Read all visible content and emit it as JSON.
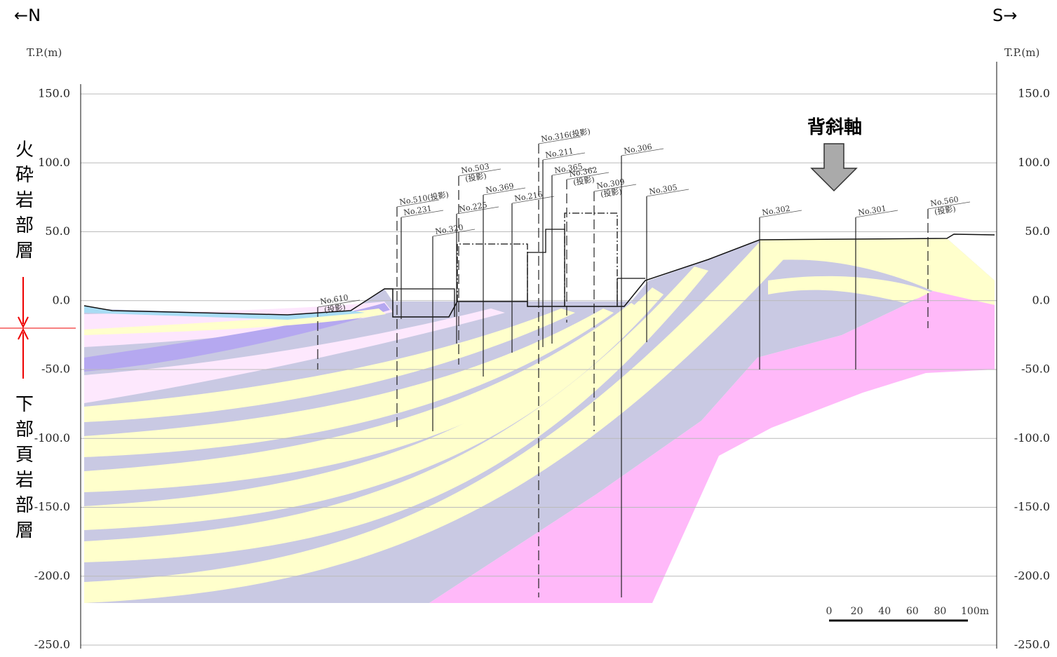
{
  "direction": {
    "left": "←N",
    "right": "S→"
  },
  "axis": {
    "unit_left": "T.P.(m)",
    "unit_right": "T.P.(m)",
    "ylim": [
      -250,
      150
    ],
    "ticks": [
      {
        "value": 150,
        "label": "150.0"
      },
      {
        "value": 100,
        "label": "100.0"
      },
      {
        "value": 50,
        "label": "50.0"
      },
      {
        "value": 0,
        "label": "0.0"
      },
      {
        "value": -50,
        "label": "-50.0"
      },
      {
        "value": -100,
        "label": "-100.0"
      },
      {
        "value": -150,
        "label": "-150.0"
      },
      {
        "value": -200,
        "label": "-200.0"
      },
      {
        "value": -250,
        "label": "-250.0"
      }
    ]
  },
  "annotation": "背斜軸",
  "formations": {
    "upper": "火砕岩部層",
    "lower": "下部頁岩部層"
  },
  "boreholes": [
    {
      "label": [
        "No.610",
        "(投影)"
      ]
    },
    {
      "label": [
        "No.510(投影)"
      ]
    },
    {
      "label": [
        "No.231"
      ]
    },
    {
      "label": [
        "No.320"
      ]
    },
    {
      "label": [
        "No.503",
        "(投影)"
      ]
    },
    {
      "label": [
        "No.225"
      ]
    },
    {
      "label": [
        "No.369"
      ]
    },
    {
      "label": [
        "No.216"
      ]
    },
    {
      "label": [
        "No.316(投影)"
      ]
    },
    {
      "label": [
        "No.211"
      ]
    },
    {
      "label": [
        "No.365"
      ]
    },
    {
      "label": [
        "No.362",
        "(投影)"
      ]
    },
    {
      "label": [
        "No.309",
        "(投影)"
      ]
    },
    {
      "label": [
        "No.306"
      ]
    },
    {
      "label": [
        "No.305"
      ]
    },
    {
      "label": [
        "No.302"
      ]
    },
    {
      "label": [
        "No.301"
      ]
    },
    {
      "label": [
        "No.560",
        "(投影)"
      ]
    }
  ],
  "scale_bar": [
    "0",
    "20",
    "40",
    "60",
    "80",
    "100m"
  ]
}
